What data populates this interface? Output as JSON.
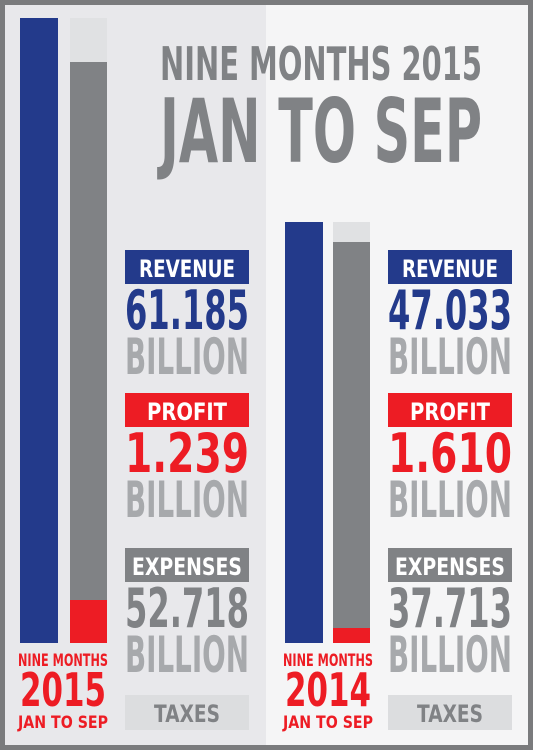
{
  "header": {
    "line1": "NINE MONTHS 2015",
    "line2": "JAN TO SEP"
  },
  "panels": [
    {
      "period": {
        "line1": "NINE MONTHS",
        "year": "2015",
        "line2": "JAN TO SEP"
      },
      "metrics": [
        {
          "label": "REVENUE",
          "value": "61.185",
          "unit": "BILLION"
        },
        {
          "label": "PROFIT",
          "value": "1.239",
          "unit": "BILLION"
        },
        {
          "label": "EXPENSES",
          "value": "52.718",
          "unit": "BILLION"
        }
      ],
      "taxes": "TAXES"
    },
    {
      "period": {
        "line1": "NINE MONTHS",
        "year": "2014",
        "line2": "JAN TO SEP"
      },
      "metrics": [
        {
          "label": "REVENUE",
          "value": "47.033",
          "unit": "BILLION"
        },
        {
          "label": "PROFIT",
          "value": "1.610",
          "unit": "BILLION"
        },
        {
          "label": "EXPENSES",
          "value": "37.713",
          "unit": "BILLION"
        }
      ],
      "taxes": "TAXES"
    }
  ]
}
